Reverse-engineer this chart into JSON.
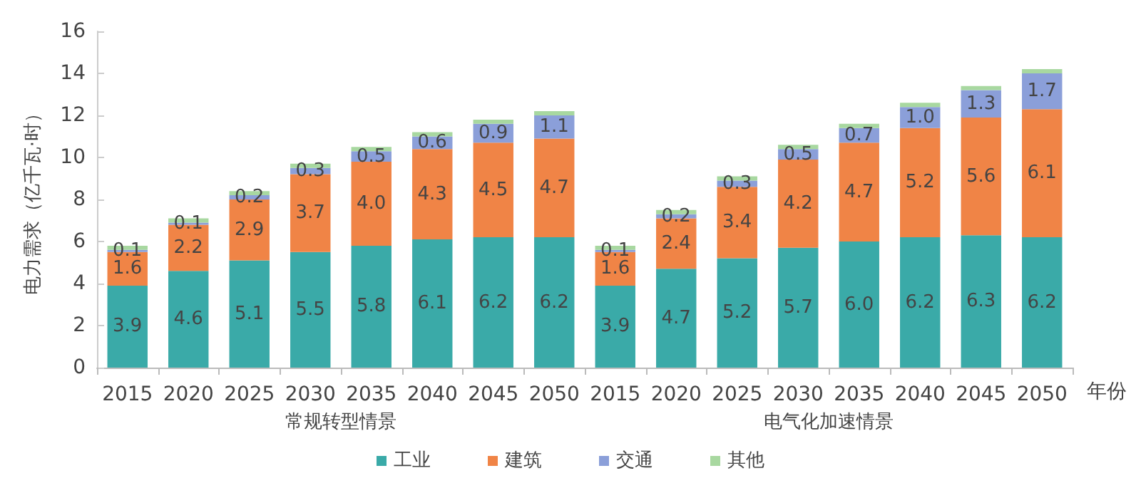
{
  "chart_data": {
    "type": "bar",
    "stacked": true,
    "xlabel": "年份",
    "ylabel": "电力需求（亿千瓦·时）",
    "categories": [
      "2015",
      "2020",
      "2025",
      "2030",
      "2035",
      "2040",
      "2045",
      "2050",
      "2015",
      "2020",
      "2025",
      "2030",
      "2035",
      "2040",
      "2045",
      "2050"
    ],
    "series": [
      {
        "name": "工业",
        "color": "#3aaaa8",
        "values": [
          3.9,
          4.6,
          5.1,
          5.5,
          5.8,
          6.1,
          6.2,
          6.2,
          3.9,
          4.7,
          5.2,
          5.7,
          6.0,
          6.2,
          6.3,
          6.2
        ],
        "value_labels": [
          "3.9",
          "4.6",
          "5.1",
          "5.5",
          "5.8",
          "6.1",
          "6.2",
          "6.2",
          "3.9",
          "4.7",
          "5.2",
          "5.7",
          "6.0",
          "6.2",
          "6.3",
          "6.2"
        ]
      },
      {
        "name": "建筑",
        "color": "#f08446",
        "values": [
          1.6,
          2.2,
          2.9,
          3.7,
          4.0,
          4.3,
          4.5,
          4.7,
          1.6,
          2.4,
          3.4,
          4.2,
          4.7,
          5.2,
          5.6,
          6.1
        ],
        "value_labels": [
          "1.6",
          "2.2",
          "2.9",
          "3.7",
          "4.0",
          "4.3",
          "4.5",
          "4.7",
          "1.6",
          "2.4",
          "3.4",
          "4.2",
          "4.7",
          "5.2",
          "5.6",
          "6.1"
        ]
      },
      {
        "name": "交通",
        "color": "#8b9fd9",
        "values": [
          0.1,
          0.1,
          0.2,
          0.3,
          0.5,
          0.6,
          0.9,
          1.1,
          0.1,
          0.2,
          0.3,
          0.5,
          0.7,
          1.0,
          1.3,
          1.7
        ],
        "value_labels": [
          "0.1",
          "0.1",
          "0.2",
          "0.3",
          "0.5",
          "0.6",
          "0.9",
          "1.1",
          "0.1",
          "0.2",
          "0.3",
          "0.5",
          "0.7",
          "1.0",
          "1.3",
          "1.7"
        ]
      },
      {
        "name": "其他",
        "color": "#a8d8a0",
        "values": [
          0.2,
          0.2,
          0.2,
          0.2,
          0.2,
          0.2,
          0.2,
          0.2,
          0.2,
          0.2,
          0.2,
          0.2,
          0.2,
          0.2,
          0.2,
          0.2
        ]
      }
    ],
    "ylim": [
      0,
      16
    ],
    "yticks": [
      0,
      2,
      4,
      6,
      8,
      10,
      12,
      14,
      16
    ],
    "grid": false,
    "legend": "bottom",
    "annotations": [
      "常规转型情景",
      "电气化加速情景"
    ]
  }
}
